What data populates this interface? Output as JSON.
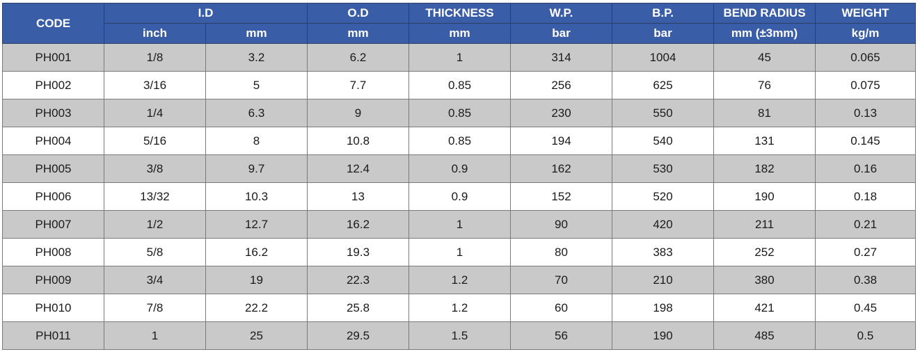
{
  "header": {
    "code": "CODE",
    "id": "I.D",
    "od": "O.D",
    "thickness": "THICKNESS",
    "wp": "W.P.",
    "bp": "B.P.",
    "bend_radius": "BEND RADIUS",
    "weight": "WEIGHT",
    "units": [
      "inch",
      "mm",
      "mm",
      "mm",
      "bar",
      "bar",
      "mm (±3mm)",
      "kg/m"
    ]
  },
  "rows": [
    [
      "PH001",
      "1/8",
      "3.2",
      "6.2",
      "1",
      "314",
      "1004",
      "45",
      "0.065"
    ],
    [
      "PH002",
      "3/16",
      "5",
      "7.7",
      "0.85",
      "256",
      "625",
      "76",
      "0.075"
    ],
    [
      "PH003",
      "1/4",
      "6.3",
      "9",
      "0.85",
      "230",
      "550",
      "81",
      "0.13"
    ],
    [
      "PH004",
      "5/16",
      "8",
      "10.8",
      "0.85",
      "194",
      "540",
      "131",
      "0.145"
    ],
    [
      "PH005",
      "3/8",
      "9.7",
      "12.4",
      "0.9",
      "162",
      "530",
      "182",
      "0.16"
    ],
    [
      "PH006",
      "13/32",
      "10.3",
      "13",
      "0.9",
      "152",
      "520",
      "190",
      "0.18"
    ],
    [
      "PH007",
      "1/2",
      "12.7",
      "16.2",
      "1",
      "90",
      "420",
      "211",
      "0.21"
    ],
    [
      "PH008",
      "5/8",
      "16.2",
      "19.3",
      "1",
      "80",
      "383",
      "252",
      "0.27"
    ],
    [
      "PH009",
      "3/4",
      "19",
      "22.3",
      "1.2",
      "70",
      "210",
      "380",
      "0.38"
    ],
    [
      "PH010",
      "7/8",
      "22.2",
      "25.8",
      "1.2",
      "60",
      "198",
      "421",
      "0.45"
    ],
    [
      "PH011",
      "1",
      "25",
      "29.5",
      "1.5",
      "56",
      "190",
      "485",
      "0.5"
    ]
  ],
  "colors": {
    "header_bg": "#3a5da8",
    "header_text": "#ffffff",
    "band_row_bg": "#c9c9c9",
    "plain_row_bg": "#ffffff"
  }
}
